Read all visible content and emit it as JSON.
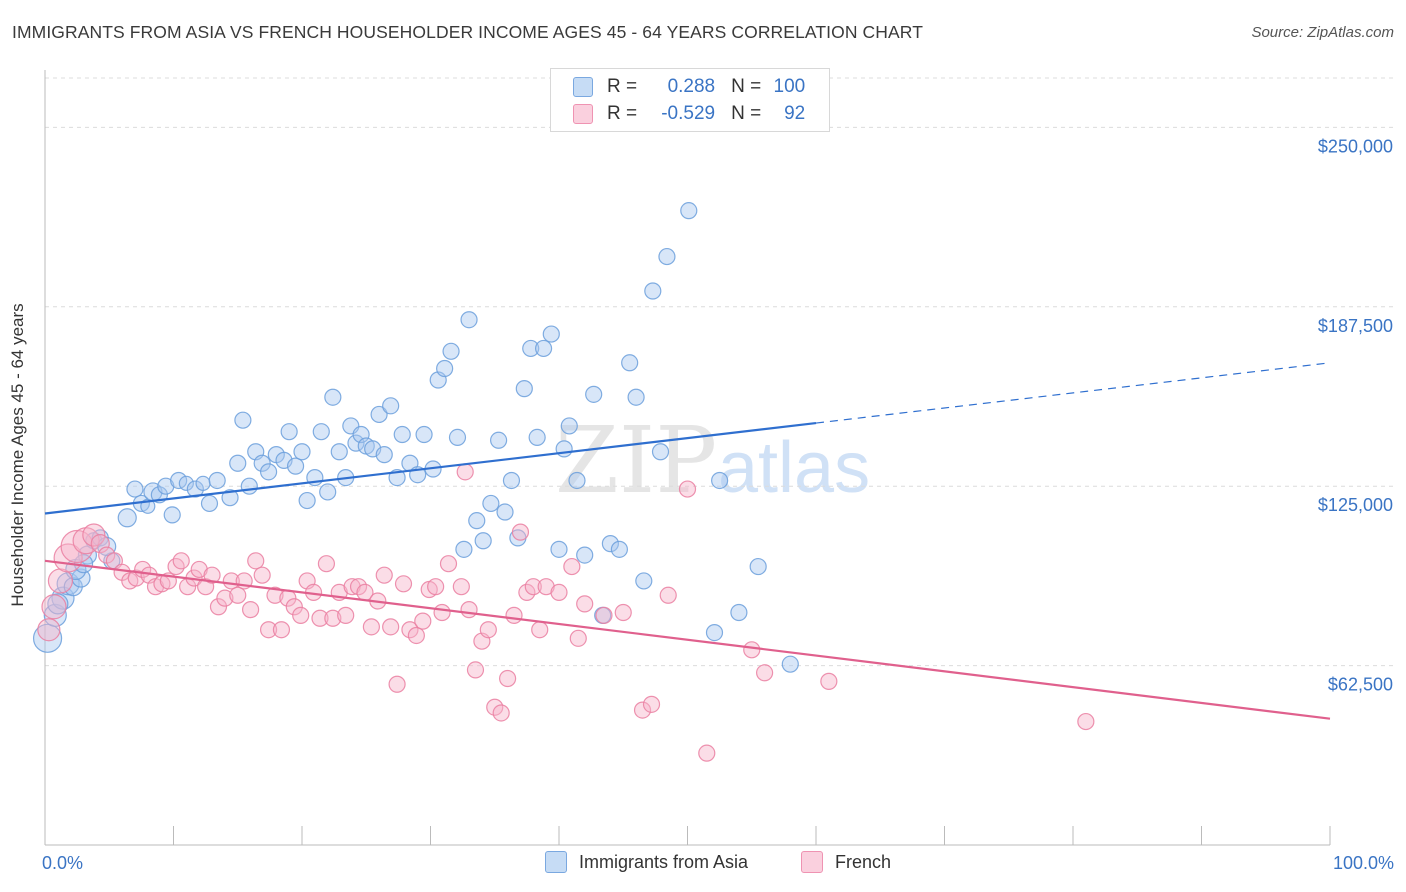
{
  "title": "IMMIGRANTS FROM ASIA VS FRENCH HOUSEHOLDER INCOME AGES 45 - 64 YEARS CORRELATION CHART",
  "source": "Source: ZipAtlas.com",
  "watermark": {
    "zip": "ZIP",
    "atlas": "atlas"
  },
  "legend": {
    "rows": [
      {
        "r_label": "R =",
        "r_value": "0.288",
        "n_label": "N =",
        "n_value": "100",
        "color": "#a9c8ef"
      },
      {
        "r_label": "R =",
        "r_value": "-0.529",
        "n_label": "N =",
        "n_value": "92",
        "color": "#f6b4c9"
      }
    ]
  },
  "bottom_legend": [
    {
      "label": "Immigrants from Asia",
      "color": "#a9c8ef"
    },
    {
      "label": "French",
      "color": "#f6b4c9"
    }
  ],
  "chart_data": {
    "type": "scatter",
    "title": "IMMIGRANTS FROM ASIA VS FRENCH HOUSEHOLDER INCOME AGES 45 - 64 YEARS CORRELATION CHART",
    "xlabel": "",
    "ylabel": "Householder Income Ages 45 - 64 years",
    "xlim": [
      0,
      100
    ],
    "ylim": [
      0,
      270000
    ],
    "x_tick_labels": [
      "0.0%",
      "100.0%"
    ],
    "y_ticks": [
      62500,
      125000,
      187500,
      250000
    ],
    "y_tick_labels": [
      "$62,500",
      "$125,000",
      "$187,500",
      "$250,000"
    ],
    "grid": true,
    "legend_position": "top-center",
    "series": [
      {
        "name": "Immigrants from Asia",
        "color": "#a9c8ef",
        "stroke": "#6b9fdc",
        "trend": {
          "x0": 0,
          "y0": 115500,
          "x1": 60,
          "y1": 147000,
          "dash_to_x": 100,
          "dash_to_y": 168000,
          "color": "#2f6fcf"
        },
        "points": [
          [
            0.2,
            72000,
            14
          ],
          [
            0.8,
            80000,
            11
          ],
          [
            1.4,
            86000,
            11
          ],
          [
            1.8,
            91000,
            11
          ],
          [
            2.2,
            90000,
            9
          ],
          [
            2.8,
            93000,
            9
          ],
          [
            3.3,
            101000,
            9
          ],
          [
            3.8,
            106000,
            8
          ],
          [
            4.3,
            107000,
            8
          ],
          [
            5.2,
            99000,
            8
          ],
          [
            4.8,
            104000,
            9
          ],
          [
            6.4,
            114000,
            9
          ],
          [
            7.0,
            124000,
            8
          ],
          [
            7.5,
            119000,
            8
          ],
          [
            8.0,
            118000,
            7
          ],
          [
            8.4,
            123000,
            9
          ],
          [
            8.9,
            122000,
            8
          ],
          [
            9.4,
            125000,
            8
          ],
          [
            9.9,
            115000,
            8
          ],
          [
            10.4,
            127000,
            8
          ],
          [
            11.0,
            126000,
            7
          ],
          [
            11.7,
            124000,
            8
          ],
          [
            12.3,
            126000,
            7
          ],
          [
            12.8,
            119000,
            8
          ],
          [
            13.4,
            127000,
            8
          ],
          [
            14.4,
            121000,
            8
          ],
          [
            15.0,
            133000,
            8
          ],
          [
            15.4,
            148000,
            8
          ],
          [
            15.9,
            125000,
            8
          ],
          [
            16.4,
            137000,
            8
          ],
          [
            16.9,
            133000,
            8
          ],
          [
            17.4,
            130000,
            8
          ],
          [
            18.0,
            136000,
            8
          ],
          [
            18.6,
            134000,
            8
          ],
          [
            19.0,
            144000,
            8
          ],
          [
            19.5,
            132000,
            8
          ],
          [
            20.0,
            137000,
            8
          ],
          [
            20.4,
            120000,
            8
          ],
          [
            21.0,
            128000,
            8
          ],
          [
            21.5,
            144000,
            8
          ],
          [
            22.0,
            123000,
            8
          ],
          [
            22.4,
            156000,
            8
          ],
          [
            22.9,
            137000,
            8
          ],
          [
            23.4,
            128000,
            8
          ],
          [
            23.8,
            146000,
            8
          ],
          [
            24.2,
            140000,
            8
          ],
          [
            24.6,
            143000,
            8
          ],
          [
            25.0,
            139000,
            8
          ],
          [
            25.5,
            138000,
            8
          ],
          [
            26.0,
            150000,
            8
          ],
          [
            26.4,
            136000,
            8
          ],
          [
            26.9,
            153000,
            8
          ],
          [
            27.4,
            128000,
            8
          ],
          [
            27.8,
            143000,
            8
          ],
          [
            28.4,
            133000,
            8
          ],
          [
            29.0,
            129000,
            8
          ],
          [
            29.5,
            143000,
            8
          ],
          [
            30.2,
            131000,
            8
          ],
          [
            30.6,
            162000,
            8
          ],
          [
            31.1,
            166000,
            8
          ],
          [
            31.6,
            172000,
            8
          ],
          [
            32.1,
            142000,
            8
          ],
          [
            32.6,
            103000,
            8
          ],
          [
            33.0,
            183000,
            8
          ],
          [
            33.6,
            113000,
            8
          ],
          [
            34.1,
            106000,
            8
          ],
          [
            34.7,
            119000,
            8
          ],
          [
            35.3,
            141000,
            8
          ],
          [
            35.8,
            116000,
            8
          ],
          [
            36.3,
            127000,
            8
          ],
          [
            36.8,
            107000,
            8
          ],
          [
            37.3,
            159000,
            8
          ],
          [
            37.8,
            173000,
            8
          ],
          [
            38.3,
            142000,
            8
          ],
          [
            38.8,
            173000,
            8
          ],
          [
            39.4,
            178000,
            8
          ],
          [
            40.0,
            103000,
            8
          ],
          [
            40.4,
            138000,
            8
          ],
          [
            40.8,
            146000,
            8
          ],
          [
            41.4,
            127000,
            8
          ],
          [
            42.0,
            101000,
            8
          ],
          [
            42.7,
            157000,
            8
          ],
          [
            43.4,
            80000,
            8
          ],
          [
            44.0,
            105000,
            8
          ],
          [
            44.7,
            103000,
            8
          ],
          [
            45.5,
            168000,
            8
          ],
          [
            46.0,
            156000,
            8
          ],
          [
            46.6,
            92000,
            8
          ],
          [
            47.3,
            193000,
            8
          ],
          [
            47.9,
            137000,
            8
          ],
          [
            48.4,
            205000,
            8
          ],
          [
            50.1,
            221000,
            8
          ],
          [
            52.1,
            74000,
            8
          ],
          [
            52.5,
            127000,
            8
          ],
          [
            54.0,
            81000,
            8
          ],
          [
            55.5,
            97000,
            8
          ],
          [
            58.0,
            63000,
            8
          ],
          [
            1.0,
            84000,
            10
          ],
          [
            2.4,
            96000,
            10
          ],
          [
            3.0,
            98000,
            9
          ]
        ]
      },
      {
        "name": "French",
        "color": "#f6b4c9",
        "stroke": "#ea7fa1",
        "trend": {
          "x0": 0,
          "y0": 99000,
          "x1": 100,
          "y1": 44000,
          "color": "#e0608d"
        },
        "points": [
          [
            0.3,
            75000,
            11
          ],
          [
            0.7,
            83000,
            12
          ],
          [
            1.2,
            92000,
            12
          ],
          [
            1.8,
            100000,
            14
          ],
          [
            2.5,
            104000,
            16
          ],
          [
            3.2,
            106000,
            13
          ],
          [
            3.8,
            108000,
            11
          ],
          [
            4.3,
            105000,
            9
          ],
          [
            4.8,
            101000,
            8
          ],
          [
            5.4,
            99000,
            8
          ],
          [
            6.0,
            95000,
            8
          ],
          [
            6.6,
            92000,
            8
          ],
          [
            7.1,
            93000,
            8
          ],
          [
            7.6,
            96000,
            8
          ],
          [
            8.1,
            94000,
            8
          ],
          [
            8.6,
            90000,
            8
          ],
          [
            9.1,
            91000,
            8
          ],
          [
            9.6,
            92000,
            8
          ],
          [
            10.2,
            97000,
            8
          ],
          [
            10.6,
            99000,
            8
          ],
          [
            11.1,
            90000,
            8
          ],
          [
            11.6,
            93000,
            8
          ],
          [
            12.0,
            96000,
            8
          ],
          [
            12.5,
            90000,
            8
          ],
          [
            13.0,
            94000,
            8
          ],
          [
            13.5,
            83000,
            8
          ],
          [
            14.0,
            86000,
            8
          ],
          [
            14.5,
            92000,
            8
          ],
          [
            15.0,
            87000,
            8
          ],
          [
            15.5,
            92000,
            8
          ],
          [
            16.0,
            82000,
            8
          ],
          [
            16.4,
            99000,
            8
          ],
          [
            16.9,
            94000,
            8
          ],
          [
            17.4,
            75000,
            8
          ],
          [
            17.9,
            87000,
            8
          ],
          [
            18.4,
            75000,
            8
          ],
          [
            18.9,
            86000,
            8
          ],
          [
            19.4,
            83000,
            8
          ],
          [
            19.9,
            80000,
            8
          ],
          [
            20.4,
            92000,
            8
          ],
          [
            20.9,
            88000,
            8
          ],
          [
            21.4,
            79000,
            8
          ],
          [
            21.9,
            98000,
            8
          ],
          [
            22.4,
            79000,
            8
          ],
          [
            22.9,
            88000,
            8
          ],
          [
            23.4,
            80000,
            8
          ],
          [
            23.9,
            90000,
            8
          ],
          [
            24.4,
            90000,
            8
          ],
          [
            24.9,
            88000,
            8
          ],
          [
            25.4,
            76000,
            8
          ],
          [
            25.9,
            85000,
            8
          ],
          [
            26.4,
            94000,
            8
          ],
          [
            26.9,
            76000,
            8
          ],
          [
            27.4,
            56000,
            8
          ],
          [
            27.9,
            91000,
            8
          ],
          [
            28.4,
            75000,
            8
          ],
          [
            28.9,
            73000,
            8
          ],
          [
            29.4,
            78000,
            8
          ],
          [
            29.9,
            89000,
            8
          ],
          [
            30.4,
            90000,
            8
          ],
          [
            30.9,
            81000,
            8
          ],
          [
            31.4,
            98000,
            8
          ],
          [
            32.4,
            90000,
            8
          ],
          [
            33.0,
            82000,
            8
          ],
          [
            33.5,
            61000,
            8
          ],
          [
            34.0,
            71000,
            8
          ],
          [
            34.5,
            75000,
            8
          ],
          [
            35.0,
            48000,
            8
          ],
          [
            35.5,
            46000,
            8
          ],
          [
            36.0,
            58000,
            8
          ],
          [
            36.5,
            80000,
            8
          ],
          [
            37.0,
            109000,
            8
          ],
          [
            37.5,
            88000,
            8
          ],
          [
            38.0,
            90000,
            8
          ],
          [
            38.5,
            75000,
            8
          ],
          [
            39.0,
            90000,
            8
          ],
          [
            40.0,
            88000,
            8
          ],
          [
            41.0,
            97000,
            8
          ],
          [
            41.5,
            72000,
            8
          ],
          [
            42.0,
            84000,
            8
          ],
          [
            43.5,
            80000,
            8
          ],
          [
            45.0,
            81000,
            8
          ],
          [
            46.5,
            47000,
            8
          ],
          [
            47.2,
            49000,
            8
          ],
          [
            48.5,
            87000,
            8
          ],
          [
            50.0,
            124000,
            8
          ],
          [
            51.5,
            32000,
            8
          ],
          [
            55.0,
            68000,
            8
          ],
          [
            56.0,
            60000,
            8
          ],
          [
            61.0,
            57000,
            8
          ],
          [
            81.0,
            43000,
            8
          ],
          [
            32.7,
            130000,
            8
          ]
        ]
      }
    ]
  }
}
